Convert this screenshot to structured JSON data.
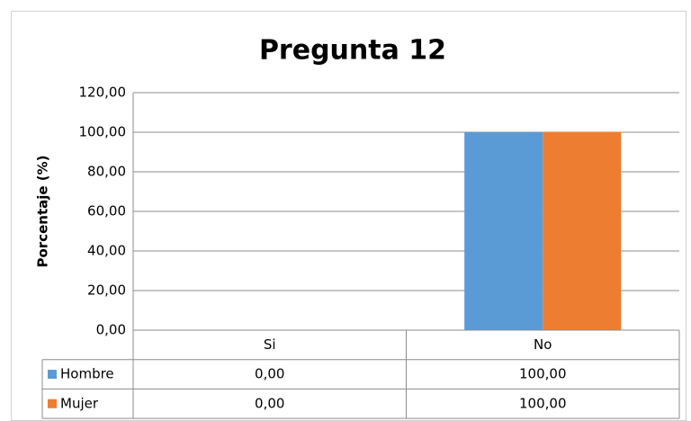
{
  "chart_data": {
    "type": "bar",
    "title": "Pregunta 12",
    "y_label": "Porcentaje (%)",
    "categories": [
      "Si",
      "No"
    ],
    "series": [
      {
        "name": "Hombre",
        "color": "#5b9bd5",
        "values": [
          0,
          100
        ],
        "value_labels": [
          "0,00",
          "100,00"
        ]
      },
      {
        "name": "Mujer",
        "color": "#ed7d31",
        "values": [
          0,
          100
        ],
        "value_labels": [
          "0,00",
          "100,00"
        ]
      }
    ],
    "ylim": [
      0,
      120
    ],
    "yticks": [
      {
        "value": 0,
        "label": "0,00"
      },
      {
        "value": 20,
        "label": "20,00"
      },
      {
        "value": 40,
        "label": "40,00"
      },
      {
        "value": 60,
        "label": "60,00"
      },
      {
        "value": 80,
        "label": "80,00"
      },
      {
        "value": 100,
        "label": "100,00"
      },
      {
        "value": 120,
        "label": "120,00"
      }
    ],
    "grid": true,
    "data_table": true
  }
}
